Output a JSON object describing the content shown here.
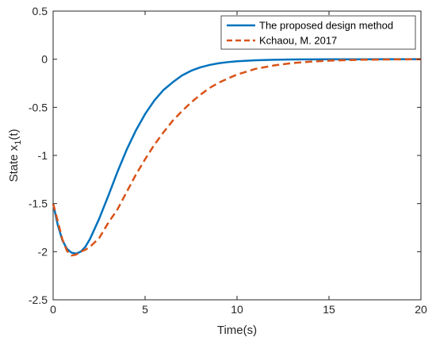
{
  "chart_data": {
    "type": "line",
    "xlabel": "Time(s)",
    "ylabel_main": "State x",
    "ylabel_sub": "1",
    "ylabel_suffix": "(t)",
    "xlim": [
      0,
      20
    ],
    "ylim": [
      -2.5,
      0.5
    ],
    "xticks": [
      0,
      5,
      10,
      15,
      20
    ],
    "yticks": [
      -2.5,
      -2,
      -1.5,
      -1,
      -0.5,
      0,
      0.5
    ],
    "xtick_labels": [
      "0",
      "5",
      "10",
      "15",
      "20"
    ],
    "ytick_labels": [
      "-2.5",
      "-2",
      "-1.5",
      "-1",
      "-0.5",
      "0",
      "0.5"
    ],
    "grid": false,
    "legend_position": "top-right",
    "series": [
      {
        "name": "The proposed design method",
        "color": "#0072BD",
        "style": "solid",
        "x": [
          0,
          0.25,
          0.5,
          0.75,
          1,
          1.25,
          1.5,
          1.75,
          2,
          2.5,
          3,
          3.5,
          4,
          4.5,
          5,
          5.5,
          6,
          6.5,
          7,
          7.5,
          8,
          8.5,
          9,
          9.5,
          10,
          11,
          12,
          13,
          14,
          15,
          16,
          17,
          18,
          19,
          20
        ],
        "y": [
          -1.5,
          -1.72,
          -1.88,
          -1.97,
          -2.01,
          -2.02,
          -2.0,
          -1.95,
          -1.87,
          -1.66,
          -1.42,
          -1.17,
          -0.94,
          -0.74,
          -0.57,
          -0.43,
          -0.32,
          -0.24,
          -0.17,
          -0.12,
          -0.085,
          -0.06,
          -0.042,
          -0.03,
          -0.021,
          -0.011,
          -0.006,
          -0.003,
          -0.0015,
          -0.0008,
          -0.0004,
          -0.0002,
          -0.0001,
          0,
          0
        ]
      },
      {
        "name": "Kchaou, M. 2017",
        "color": "#D95319",
        "style": "dashed",
        "x": [
          0,
          0.25,
          0.5,
          0.75,
          1,
          1.25,
          1.5,
          1.75,
          2,
          2.5,
          3,
          3.5,
          4,
          4.5,
          5,
          5.5,
          6,
          6.5,
          7,
          7.5,
          8,
          8.5,
          9,
          9.5,
          10,
          11,
          12,
          13,
          14,
          15,
          16,
          17,
          18,
          19,
          20
        ],
        "y": [
          -1.5,
          -1.68,
          -1.87,
          -1.99,
          -2.04,
          -2.03,
          -2.0,
          -1.98,
          -1.95,
          -1.86,
          -1.7,
          -1.56,
          -1.38,
          -1.2,
          -1.04,
          -0.89,
          -0.76,
          -0.64,
          -0.54,
          -0.45,
          -0.37,
          -0.3,
          -0.245,
          -0.2,
          -0.16,
          -0.1,
          -0.065,
          -0.04,
          -0.025,
          -0.015,
          -0.009,
          -0.005,
          -0.003,
          -0.0015,
          -0.0008
        ]
      }
    ]
  }
}
